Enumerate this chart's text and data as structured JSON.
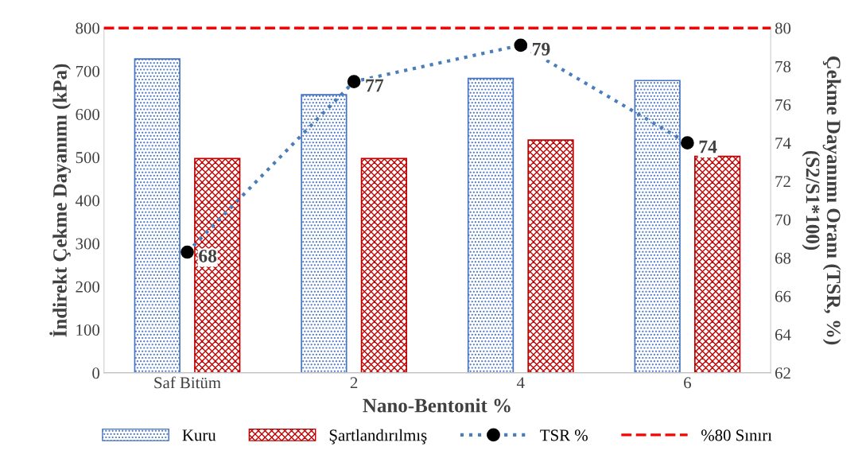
{
  "chart_data": {
    "type": "bar",
    "categories": [
      "Saf Bitüm",
      "2",
      "4",
      "6"
    ],
    "xlabel": "Nano-Bentonit %",
    "ylabel": "İndirekt Çekme Dayanımı (kPa)",
    "y2label": "Çekme Dayanımı Oranı (TSR, %)\n(S2/S1*100)",
    "ylim": [
      0,
      800
    ],
    "yticks": [
      0,
      100,
      200,
      300,
      400,
      500,
      600,
      700,
      800
    ],
    "y2lim": [
      62,
      80
    ],
    "y2ticks": [
      62,
      64,
      66,
      68,
      70,
      72,
      74,
      76,
      78,
      80
    ],
    "series": [
      {
        "name": "Kuru",
        "color": "#4472c4",
        "values": [
          728,
          645,
          683,
          678
        ]
      },
      {
        "name": "Şartlandırılmış",
        "color": "#c00000",
        "values": [
          497,
          497,
          540,
          502
        ]
      },
      {
        "name": "TSR %",
        "type": "line",
        "axis": "y2",
        "color": "#4a7ebb",
        "marker": "circle",
        "line_style": "dotted",
        "values": [
          68.3,
          77.2,
          79.1,
          74.0
        ],
        "value_labels": [
          "68",
          "77",
          "79",
          "74"
        ]
      }
    ],
    "ref_lines": [
      {
        "axis": "y2",
        "value": 80,
        "label": "%80 Sınırı",
        "color": "#ff0000",
        "line_style": "dashed"
      }
    ],
    "legend": "bottom",
    "grid": false
  }
}
